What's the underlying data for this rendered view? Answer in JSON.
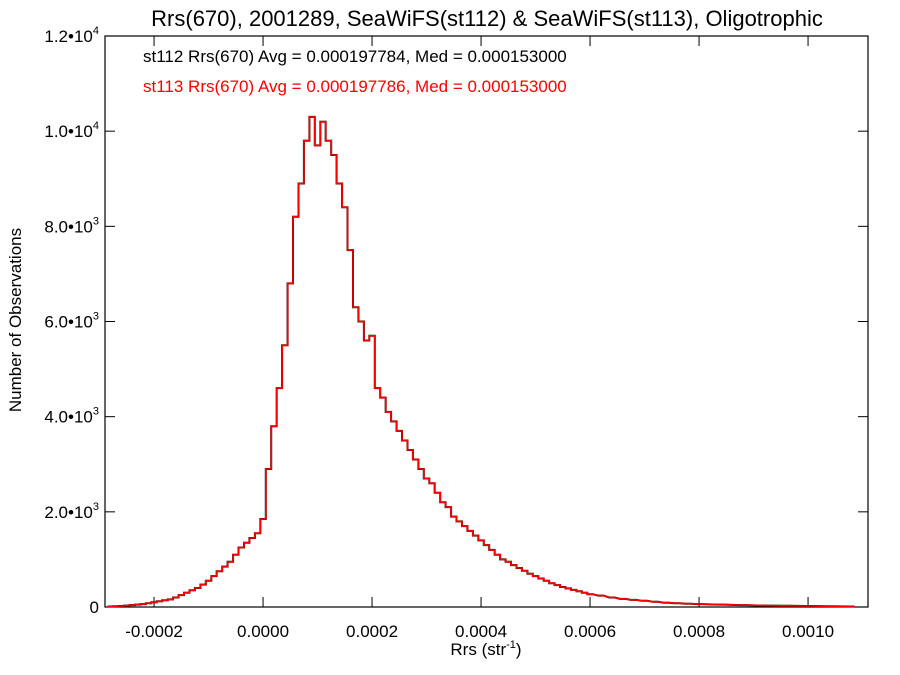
{
  "chart_data": {
    "type": "histogram-step",
    "title": "Rrs(670), 2001289, SeaWiFS(st112) & SeaWiFS(st113), Oligotrophic",
    "xlabel": {
      "base": "Rrs (str",
      "sup": "-1",
      "close": ")"
    },
    "ylabel": "Number of Observations",
    "xlim": [
      -0.00029,
      0.00111
    ],
    "ylim": [
      0,
      12000
    ],
    "x_ticks": [
      {
        "value": -0.0002,
        "label": "-0.0002"
      },
      {
        "value": 0.0,
        "label": "0.0000"
      },
      {
        "value": 0.0002,
        "label": "0.0002"
      },
      {
        "value": 0.0004,
        "label": "0.0004"
      },
      {
        "value": 0.0006,
        "label": "0.0006"
      },
      {
        "value": 0.0008,
        "label": "0.0008"
      },
      {
        "value": 0.001,
        "label": "0.0010"
      }
    ],
    "y_ticks": [
      {
        "value": 0,
        "mant": "0",
        "exp": ""
      },
      {
        "value": 2000,
        "mant": "2.0•10",
        "exp": "3"
      },
      {
        "value": 4000,
        "mant": "4.0•10",
        "exp": "3"
      },
      {
        "value": 6000,
        "mant": "6.0•10",
        "exp": "3"
      },
      {
        "value": 8000,
        "mant": "8.0•10",
        "exp": "3"
      },
      {
        "value": 10000,
        "mant": "1.0•10",
        "exp": "4"
      },
      {
        "value": 12000,
        "mant": "1.2•10",
        "exp": "4"
      }
    ],
    "legend": [
      {
        "text": "st112 Rrs(670) Avg = 0.000197784, Med = 0.000153000",
        "color": "#000000"
      },
      {
        "text": "st113 Rrs(670) Avg = 0.000197786, Med = 0.000153000",
        "color": "#ff0000"
      }
    ],
    "bin_width": 1e-05,
    "series": [
      {
        "name": "st112",
        "color": "#000000",
        "x": [
          -0.00028,
          -0.00027,
          -0.00026,
          -0.00025,
          -0.00024,
          -0.00023,
          -0.00022,
          -0.00021,
          -0.0002,
          -0.00019,
          -0.00018,
          -0.00017,
          -0.00016,
          -0.00015,
          -0.00014,
          -0.00013,
          -0.00012,
          -0.00011,
          -0.0001,
          -9e-05,
          -8e-05,
          -7e-05,
          -6e-05,
          -5e-05,
          -4e-05,
          -3e-05,
          -2e-05,
          -1e-05,
          0.0,
          1e-05,
          2e-05,
          3e-05,
          4e-05,
          5e-05,
          6e-05,
          7e-05,
          8e-05,
          9e-05,
          0.0001,
          0.00011,
          0.00012,
          0.00013,
          0.00014,
          0.00015,
          0.00016,
          0.00017,
          0.00018,
          0.00019,
          0.0002,
          0.00021,
          0.00022,
          0.00023,
          0.00024,
          0.00025,
          0.00026,
          0.00027,
          0.00028,
          0.00029,
          0.0003,
          0.00031,
          0.00032,
          0.00033,
          0.00034,
          0.00035,
          0.00036,
          0.00037,
          0.00038,
          0.00039,
          0.0004,
          0.00041,
          0.00042,
          0.00043,
          0.00044,
          0.00045,
          0.00046,
          0.00047,
          0.00048,
          0.00049,
          0.0005,
          0.00051,
          0.00052,
          0.00053,
          0.00054,
          0.00055,
          0.00056,
          0.00057,
          0.00058,
          0.00059,
          0.0006,
          0.00062,
          0.00064,
          0.00066,
          0.00068,
          0.0007,
          0.00072,
          0.00074,
          0.00076,
          0.00078,
          0.0008,
          0.00084,
          0.00088,
          0.00092,
          0.00096,
          0.001,
          0.00104,
          0.00108
        ],
        "values": [
          10,
          15,
          20,
          30,
          40,
          50,
          60,
          80,
          100,
          120,
          140,
          160,
          200,
          250,
          300,
          350,
          400,
          470,
          550,
          650,
          750,
          850,
          950,
          1100,
          1250,
          1350,
          1450,
          1550,
          1850,
          2900,
          3800,
          4600,
          5500,
          6800,
          8200,
          8900,
          9800,
          10300,
          9700,
          10200,
          9800,
          9500,
          8900,
          8400,
          7500,
          6300,
          6000,
          5600,
          5700,
          4600,
          4400,
          4100,
          3900,
          3700,
          3500,
          3300,
          3100,
          2900,
          2700,
          2600,
          2400,
          2200,
          2100,
          1900,
          1800,
          1700,
          1600,
          1500,
          1400,
          1300,
          1200,
          1100,
          1000,
          950,
          880,
          820,
          760,
          700,
          650,
          600,
          550,
          500,
          460,
          420,
          390,
          360,
          330,
          300,
          270,
          240,
          200,
          170,
          150,
          130,
          110,
          90,
          80,
          70,
          60,
          50,
          40,
          30,
          25,
          20,
          15,
          10
        ]
      },
      {
        "name": "st113",
        "color": "#ff0000",
        "x": [
          -0.00028,
          -0.00027,
          -0.00026,
          -0.00025,
          -0.00024,
          -0.00023,
          -0.00022,
          -0.00021,
          -0.0002,
          -0.00019,
          -0.00018,
          -0.00017,
          -0.00016,
          -0.00015,
          -0.00014,
          -0.00013,
          -0.00012,
          -0.00011,
          -0.0001,
          -9e-05,
          -8e-05,
          -7e-05,
          -6e-05,
          -5e-05,
          -4e-05,
          -3e-05,
          -2e-05,
          -1e-05,
          0.0,
          1e-05,
          2e-05,
          3e-05,
          4e-05,
          5e-05,
          6e-05,
          7e-05,
          8e-05,
          9e-05,
          0.0001,
          0.00011,
          0.00012,
          0.00013,
          0.00014,
          0.00015,
          0.00016,
          0.00017,
          0.00018,
          0.00019,
          0.0002,
          0.00021,
          0.00022,
          0.00023,
          0.00024,
          0.00025,
          0.00026,
          0.00027,
          0.00028,
          0.00029,
          0.0003,
          0.00031,
          0.00032,
          0.00033,
          0.00034,
          0.00035,
          0.00036,
          0.00037,
          0.00038,
          0.00039,
          0.0004,
          0.00041,
          0.00042,
          0.00043,
          0.00044,
          0.00045,
          0.00046,
          0.00047,
          0.00048,
          0.00049,
          0.0005,
          0.00051,
          0.00052,
          0.00053,
          0.00054,
          0.00055,
          0.00056,
          0.00057,
          0.00058,
          0.00059,
          0.0006,
          0.00062,
          0.00064,
          0.00066,
          0.00068,
          0.0007,
          0.00072,
          0.00074,
          0.00076,
          0.00078,
          0.0008,
          0.00084,
          0.00088,
          0.00092,
          0.00096,
          0.001,
          0.00104,
          0.00108
        ],
        "values": [
          10,
          15,
          20,
          30,
          40,
          50,
          60,
          80,
          100,
          120,
          140,
          160,
          200,
          250,
          300,
          350,
          400,
          470,
          550,
          650,
          750,
          850,
          950,
          1100,
          1250,
          1350,
          1450,
          1550,
          1850,
          2900,
          3800,
          4600,
          5500,
          6800,
          8200,
          8900,
          9800,
          10300,
          9700,
          10200,
          9800,
          9500,
          8900,
          8400,
          7500,
          6300,
          6000,
          5600,
          5700,
          4600,
          4400,
          4100,
          3900,
          3700,
          3500,
          3300,
          3100,
          2900,
          2700,
          2600,
          2400,
          2200,
          2100,
          1900,
          1800,
          1700,
          1600,
          1500,
          1400,
          1300,
          1200,
          1100,
          1000,
          950,
          880,
          820,
          760,
          700,
          650,
          600,
          550,
          500,
          460,
          420,
          390,
          360,
          330,
          300,
          270,
          240,
          200,
          170,
          150,
          130,
          110,
          90,
          80,
          70,
          60,
          50,
          40,
          30,
          25,
          20,
          15,
          10
        ]
      }
    ]
  }
}
